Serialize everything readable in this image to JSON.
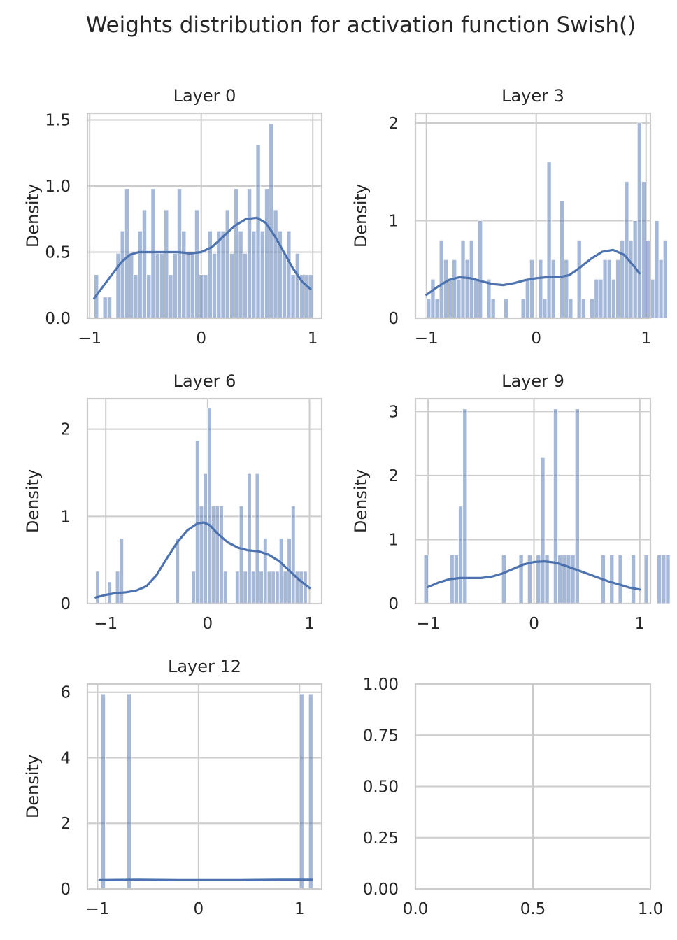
{
  "figure_title": "Weights distribution for activation function Swish()",
  "colors": {
    "bar": "#4C72B0",
    "kde": "#4C72B0",
    "grid": "#cccccc",
    "spine": "#cccccc",
    "text": "#262626"
  },
  "chart_data": [
    {
      "type": "histogram",
      "title": "Layer 0",
      "ylabel": "Density",
      "xlim": [
        -1.02,
        1.08
      ],
      "ylim": [
        0,
        1.55
      ],
      "xticks": [
        -1,
        0,
        1
      ],
      "xtick_labels": [
        "−1",
        "0",
        "1"
      ],
      "yticks": [
        0,
        0.5,
        1.0,
        1.5
      ],
      "ytick_labels": [
        "0.0",
        "0.5",
        "1.0",
        "1.5"
      ],
      "bin_start": -0.96,
      "bin_width": 0.0392,
      "values": [
        0.33,
        0,
        0.16,
        0.16,
        0,
        0.49,
        0.66,
        0.98,
        0.49,
        0.33,
        0.66,
        0.82,
        0.33,
        0.98,
        0.49,
        0.49,
        0.82,
        0.33,
        0.49,
        0.98,
        0.66,
        0.49,
        0.49,
        0.82,
        0.33,
        0.33,
        0.66,
        0.49,
        0.66,
        0.66,
        0.82,
        0.49,
        0.98,
        0.66,
        0.49,
        0.98,
        0.66,
        1.31,
        0.66,
        0.98,
        1.47,
        0.82,
        0.66,
        0.49,
        0.66,
        0.33,
        0.49,
        0.33,
        0.33,
        0.33
      ],
      "kde": {
        "x": [
          -0.96,
          -0.88,
          -0.8,
          -0.72,
          -0.64,
          -0.56,
          -0.48,
          -0.4,
          -0.3,
          -0.2,
          -0.1,
          0,
          0.1,
          0.2,
          0.3,
          0.4,
          0.5,
          0.58,
          0.66,
          0.74,
          0.82,
          0.9,
          0.98
        ],
        "y": [
          0.15,
          0.24,
          0.33,
          0.42,
          0.48,
          0.5,
          0.5,
          0.5,
          0.5,
          0.5,
          0.49,
          0.5,
          0.54,
          0.62,
          0.7,
          0.75,
          0.76,
          0.72,
          0.62,
          0.5,
          0.38,
          0.28,
          0.22
        ]
      }
    },
    {
      "type": "histogram",
      "title": "Layer 3",
      "ylabel": "Density",
      "xlim": [
        -1.1,
        1.04
      ],
      "ylim": [
        0,
        2.1
      ],
      "xticks": [
        -1,
        0,
        1
      ],
      "xtick_labels": [
        "−1",
        "0",
        "1"
      ],
      "yticks": [
        0,
        1,
        2
      ],
      "ytick_labels": [
        "0",
        "1",
        "2"
      ],
      "bin_start": -1.0,
      "bin_width": 0.0392,
      "values": [
        0.2,
        0.4,
        0.2,
        0.8,
        0.6,
        0.4,
        0.6,
        0.4,
        0.8,
        0.6,
        0.8,
        0.4,
        1.0,
        0,
        0.4,
        0.2,
        0,
        0,
        0.2,
        0,
        0,
        0,
        0.2,
        0.4,
        0.6,
        0,
        0.6,
        0.2,
        1.6,
        0.6,
        0,
        1.2,
        0.6,
        0.2,
        0,
        0.8,
        0.2,
        0,
        0.2,
        0.4,
        0.4,
        0.6,
        0.6,
        0.4,
        0.6,
        0.8,
        1.4,
        0.8,
        1.0,
        2.0,
        1.4,
        0.8,
        0.4,
        1.0,
        0.6,
        0.8
      ],
      "kde": {
        "x": [
          -1.0,
          -0.9,
          -0.8,
          -0.7,
          -0.6,
          -0.5,
          -0.4,
          -0.3,
          -0.2,
          -0.1,
          0,
          0.1,
          0.2,
          0.3,
          0.4,
          0.5,
          0.6,
          0.7,
          0.8,
          0.9,
          0.94
        ],
        "y": [
          0.24,
          0.32,
          0.39,
          0.42,
          0.41,
          0.38,
          0.35,
          0.34,
          0.36,
          0.39,
          0.41,
          0.42,
          0.42,
          0.44,
          0.52,
          0.61,
          0.68,
          0.7,
          0.65,
          0.52,
          0.46
        ]
      }
    },
    {
      "type": "histogram",
      "title": "Layer 6",
      "ylabel": "Density",
      "xlim": [
        -1.18,
        1.12
      ],
      "ylim": [
        0,
        2.35
      ],
      "xticks": [
        -1,
        0,
        1
      ],
      "xtick_labels": [
        "−1",
        "0",
        "1"
      ],
      "yticks": [
        0,
        1,
        2
      ],
      "ytick_labels": [
        "0",
        "1",
        "2"
      ],
      "bin_start": -1.1,
      "bin_width": 0.0392,
      "values": [
        0.37,
        0,
        0,
        0.25,
        0,
        0.37,
        0.75,
        0,
        0,
        0,
        0,
        0,
        0,
        0,
        0,
        0,
        0,
        0,
        0,
        0,
        0.75,
        0,
        0,
        0,
        0.37,
        1.87,
        1.12,
        1.49,
        2.24,
        1.12,
        1.12,
        1.12,
        0.37,
        0,
        0,
        0.37,
        1.12,
        0.37,
        1.49,
        0.37,
        1.49,
        0.37,
        0.75,
        0.37,
        0.37,
        0.37,
        0.75,
        0.37,
        0.75,
        1.12,
        0.37,
        0.37,
        0.37
      ],
      "kde": {
        "x": [
          -1.1,
          -1.0,
          -0.9,
          -0.8,
          -0.7,
          -0.6,
          -0.5,
          -0.4,
          -0.3,
          -0.2,
          -0.1,
          -0.04,
          0.02,
          0.1,
          0.2,
          0.3,
          0.4,
          0.5,
          0.6,
          0.7,
          0.8,
          0.9,
          1.0
        ],
        "y": [
          0.07,
          0.1,
          0.12,
          0.13,
          0.15,
          0.2,
          0.33,
          0.52,
          0.7,
          0.84,
          0.92,
          0.93,
          0.9,
          0.8,
          0.7,
          0.64,
          0.61,
          0.6,
          0.56,
          0.49,
          0.38,
          0.27,
          0.18
        ]
      }
    },
    {
      "type": "histogram",
      "title": "Layer 9",
      "ylabel": "Density",
      "xlim": [
        -1.12,
        1.1
      ],
      "ylim": [
        0,
        3.2
      ],
      "xticks": [
        -1,
        0,
        1
      ],
      "xtick_labels": [
        "−1",
        "0",
        "1"
      ],
      "yticks": [
        0,
        1,
        2,
        3
      ],
      "ytick_labels": [
        "0",
        "1",
        "2",
        "3"
      ],
      "bin_start": -1.04,
      "bin_width": 0.0408,
      "values": [
        0.76,
        0,
        0,
        0,
        0,
        0,
        0.76,
        0.76,
        1.52,
        3.04,
        0,
        0,
        0,
        0,
        0,
        0,
        0,
        0,
        0.76,
        0,
        0,
        0,
        0.76,
        0,
        0.76,
        0,
        0.76,
        2.28,
        0.76,
        0,
        3.04,
        0.76,
        0.76,
        0.76,
        0.76,
        3.04,
        0,
        0,
        0,
        0,
        0,
        0.76,
        0,
        0.76,
        0,
        0.76,
        0,
        0,
        0.76,
        0,
        0,
        0.76,
        0,
        0,
        0.76,
        0.76,
        0.76
      ],
      "kde": {
        "x": [
          -1.0,
          -0.9,
          -0.8,
          -0.7,
          -0.6,
          -0.5,
          -0.4,
          -0.3,
          -0.2,
          -0.1,
          0,
          0.1,
          0.2,
          0.3,
          0.4,
          0.5,
          0.6,
          0.7,
          0.8,
          0.9,
          1.0
        ],
        "y": [
          0.26,
          0.33,
          0.38,
          0.4,
          0.4,
          0.4,
          0.42,
          0.47,
          0.54,
          0.61,
          0.65,
          0.66,
          0.64,
          0.59,
          0.53,
          0.47,
          0.41,
          0.35,
          0.3,
          0.25,
          0.22
        ]
      }
    },
    {
      "type": "histogram",
      "title": "Layer 12",
      "ylabel": "Density",
      "xlim": [
        -1.1,
        1.22
      ],
      "ylim": [
        0,
        6.25
      ],
      "xticks": [
        -1,
        0,
        1
      ],
      "xtick_labels": [
        "−1",
        "0",
        "1"
      ],
      "yticks": [
        0,
        2,
        4,
        6
      ],
      "ytick_labels": [
        "0",
        "2",
        "4",
        "6"
      ],
      "bars": [
        {
          "x": -0.965,
          "w": 0.042,
          "v": 5.95
        },
        {
          "x": -0.71,
          "w": 0.042,
          "v": 5.95
        },
        {
          "x": 1.0,
          "w": 0.042,
          "v": 5.95
        },
        {
          "x": 1.09,
          "w": 0.042,
          "v": 5.95
        }
      ],
      "kde": {
        "x": [
          -0.98,
          -0.6,
          -0.2,
          0,
          0.4,
          0.8,
          1.12
        ],
        "y": [
          0.27,
          0.28,
          0.27,
          0.27,
          0.27,
          0.28,
          0.28
        ]
      }
    },
    {
      "type": "empty",
      "title": "",
      "ylabel": "",
      "xlim": [
        0,
        1
      ],
      "ylim": [
        0,
        1
      ],
      "xticks": [
        0,
        0.5,
        1.0
      ],
      "xtick_labels": [
        "0.0",
        "0.5",
        "1.0"
      ],
      "yticks": [
        0,
        0.25,
        0.5,
        0.75,
        1.0
      ],
      "ytick_labels": [
        "0.00",
        "0.25",
        "0.50",
        "0.75",
        "1.00"
      ]
    }
  ]
}
